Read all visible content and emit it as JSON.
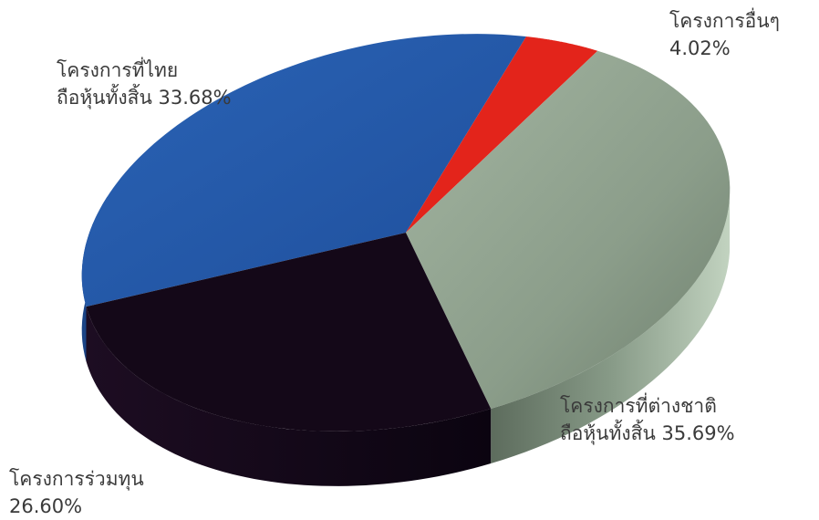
{
  "chart_data": {
    "type": "pie",
    "title": "",
    "slices": [
      {
        "label_line1": "โครงการที่ไทย",
        "label_line2": "ถือหุ้นทั้งสิ้น",
        "value": 33.68,
        "value_text": "33.68%",
        "color": "#2357A8"
      },
      {
        "label_line1": "โครงการอื่นๆ",
        "label_line2": "",
        "value": 4.02,
        "value_text": "4.02%",
        "color": "#E3241B"
      },
      {
        "label_line1": "โครงการที่ต่างชาติ",
        "label_line2": "ถือหุ้นทั้งสิ้น",
        "value": 35.69,
        "value_text": "35.69%",
        "color": "#8E9F8C"
      },
      {
        "label_line1": "โครงการร่วมทุน",
        "label_line2": "",
        "value": 26.6,
        "value_text": "26.60%",
        "color": "#140818"
      }
    ]
  }
}
